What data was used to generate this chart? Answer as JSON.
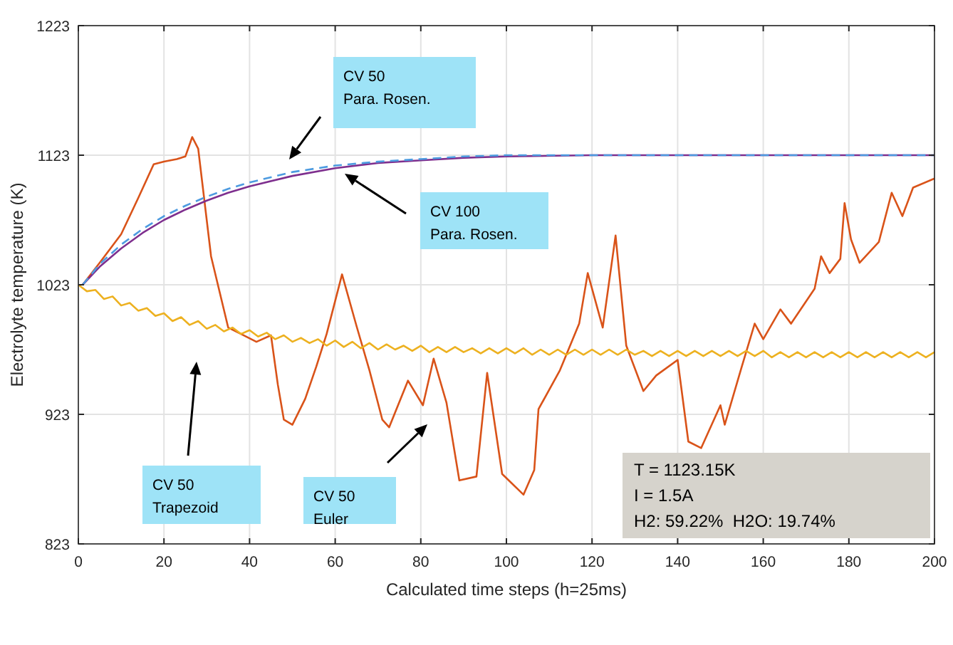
{
  "chart_data": {
    "type": "line",
    "xlabel": "Calculated time steps (h=25ms)",
    "ylabel": "Electrolyte temperature (K)",
    "xlim": [
      0,
      200
    ],
    "xticks": [
      0,
      20,
      40,
      60,
      80,
      100,
      120,
      140,
      160,
      180,
      200
    ],
    "ylim": [
      823,
      1223
    ],
    "yticks": [
      823,
      923,
      1023,
      1123,
      1223
    ],
    "grid": true,
    "series": [
      {
        "color": "#d95319",
        "x": [
          1,
          5,
          10,
          14,
          17.6,
          20,
          23,
          25,
          26.6,
          28,
          31,
          35,
          38,
          41.6,
          45,
          46.6,
          48,
          50,
          53,
          55.6,
          58,
          61.6,
          65,
          68,
          71,
          72.6,
          77,
          80.5,
          83,
          86,
          89,
          93,
          95.5,
          99,
          104,
          106.5,
          107.5,
          112.5,
          117,
          119,
          122.5,
          125.5,
          128,
          132,
          135,
          140,
          142.5,
          145.5,
          150,
          151,
          155,
          158,
          160,
          164,
          166.5,
          172,
          173.5,
          175.5,
          178,
          179,
          180.5,
          182.5,
          187,
          190,
          192.5,
          195,
          200
        ],
        "values": [
          1023,
          1040,
          1062,
          1090,
          1116,
          1118,
          1120,
          1122,
          1137,
          1128,
          1045,
          990,
          985,
          979,
          984,
          946,
          919,
          915,
          935,
          960,
          985,
          1031,
          991,
          957,
          919,
          913,
          949,
          930,
          966,
          932,
          872,
          875,
          955,
          877,
          861,
          880,
          927,
          957,
          993,
          1032,
          990,
          1061,
          976,
          941,
          953,
          965,
          902,
          897,
          930,
          915,
          960,
          993,
          981,
          1004,
          993,
          1020,
          1045,
          1032,
          1043,
          1086,
          1058,
          1040,
          1056,
          1094,
          1076,
          1098,
          1105
        ]
      },
      {
        "color": "#edb120",
        "x": [
          0,
          2,
          4,
          6,
          8,
          10,
          12,
          14,
          16,
          18,
          20,
          22,
          24,
          26,
          28,
          30,
          32,
          34,
          36,
          38,
          40,
          42,
          44,
          46,
          48,
          50,
          52,
          54,
          56,
          58,
          60,
          62,
          64,
          66,
          68,
          70,
          72,
          74,
          76,
          78,
          80,
          82,
          84,
          86,
          88,
          90,
          92,
          94,
          96,
          98,
          100,
          102,
          104,
          106,
          108,
          110,
          112,
          114,
          116,
          118,
          120,
          122,
          124,
          126,
          128,
          130,
          132,
          134,
          136,
          138,
          140,
          142,
          144,
          146,
          148,
          150,
          152,
          154,
          156,
          158,
          160,
          162,
          164,
          166,
          168,
          170,
          172,
          174,
          176,
          178,
          180,
          182,
          184,
          186,
          188,
          190,
          192,
          194,
          196,
          198,
          200
        ],
        "values": [
          1023,
          1018,
          1019,
          1012,
          1014,
          1007,
          1009,
          1003,
          1005,
          999,
          1001,
          995,
          998,
          992,
          995,
          989,
          992,
          987,
          990,
          985,
          988,
          983,
          986,
          981,
          984,
          979,
          982,
          978,
          981,
          976,
          980,
          975,
          979,
          974,
          978,
          973,
          977,
          973,
          976,
          972,
          976,
          971,
          975,
          971,
          975,
          971,
          974,
          970,
          974,
          970,
          974,
          970,
          974,
          969,
          973,
          969,
          973,
          969,
          973,
          969,
          973,
          969,
          973,
          969,
          973,
          969,
          972,
          968,
          972,
          968,
          972,
          968,
          972,
          968,
          972,
          968,
          972,
          968,
          972,
          968,
          972,
          967,
          971,
          967,
          971,
          967,
          971,
          967,
          971,
          967,
          971,
          967,
          971,
          967,
          971,
          967,
          971,
          967,
          971,
          967,
          971
        ]
      },
      {
        "color": "#7e2f8e",
        "x": [
          1,
          5,
          10,
          15,
          20,
          25,
          30,
          35,
          40,
          50,
          60,
          70,
          80,
          90,
          100,
          120,
          140,
          160,
          180,
          200
        ],
        "values": [
          1023,
          1037,
          1051,
          1063,
          1073,
          1081,
          1088,
          1094,
          1099,
          1107,
          1113,
          1117,
          1119,
          1121,
          1122,
          1123,
          1123,
          1123,
          1123,
          1123
        ]
      },
      {
        "color": "#4d9be0",
        "line_style": "dashed",
        "x": [
          1,
          5,
          10,
          15,
          20,
          25,
          30,
          35,
          40,
          50,
          60,
          70,
          80,
          90,
          100,
          120,
          140,
          160,
          180,
          200
        ],
        "values": [
          1023,
          1039,
          1054,
          1066,
          1076,
          1084,
          1091,
          1097,
          1102,
          1110,
          1115,
          1118,
          1120,
          1122,
          1123,
          1123,
          1123,
          1123,
          1123,
          1123
        ]
      }
    ],
    "annotations": [
      "CV 50\nPara. Rosen.",
      "CV 100\nPara. Rosen.",
      "CV 50\nTrapezoid",
      "CV 50\nEuler",
      "T = 1123.15K\nI = 1.5A\nH2: 59.22%  H2O: 19.74%"
    ]
  }
}
